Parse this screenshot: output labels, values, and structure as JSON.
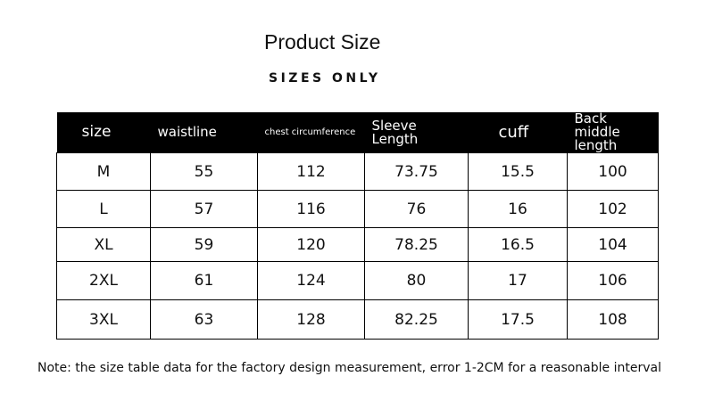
{
  "header": {
    "title": "Product Size",
    "subtitle": "SIZES ONLY"
  },
  "table": {
    "columns": [
      "size",
      "waistline",
      "chest circumference",
      "Sleeve Length",
      "cuff",
      "Back middle length"
    ],
    "rows": [
      [
        "M",
        55,
        112,
        73.75,
        15.5,
        100
      ],
      [
        "L",
        57,
        116,
        76,
        16,
        102
      ],
      [
        "XL",
        59,
        120,
        78.25,
        16.5,
        104
      ],
      [
        "2XL",
        61,
        124,
        80,
        17,
        106
      ],
      [
        "3XL",
        63,
        128,
        82.25,
        17.5,
        108
      ]
    ]
  },
  "note": "Note: the size table data for the factory design measurement, error 1-2CM for a reasonable interval"
}
